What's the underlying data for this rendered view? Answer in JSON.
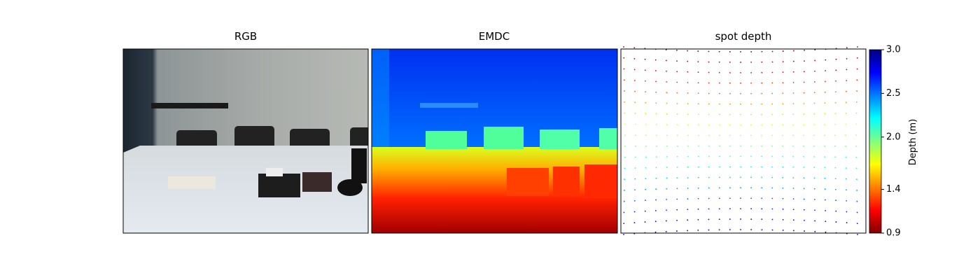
{
  "panels": [
    {
      "title": "RGB"
    },
    {
      "title": "EMDC"
    },
    {
      "title": "spot depth"
    }
  ],
  "colorbar": {
    "label": "Depth (m)",
    "lim": [
      0.9,
      3.0
    ],
    "ticks": [
      0.9,
      1.4,
      {
        "value": 2.0,
        "label": "2.0"
      },
      2.5,
      {
        "value": 3.0,
        "label": "3.0"
      }
    ]
  }
}
